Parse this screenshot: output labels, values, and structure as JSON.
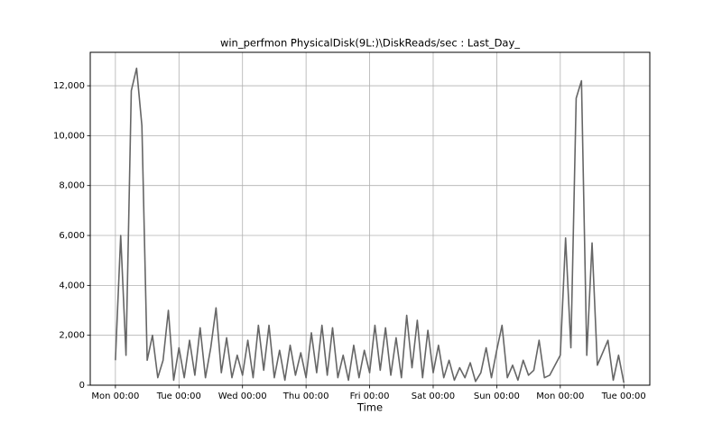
{
  "chart_data": {
    "type": "line",
    "title": "win_perfmon PhysicalDisk(9L:)\\DiskReads/sec : Last_Day_",
    "x_label": "Time",
    "grid": true,
    "xlim": [
      -9.5,
      201.8
    ],
    "ylim": [
      0,
      13340
    ],
    "xticks": [
      {
        "value": 0,
        "label": "Mon 00:00"
      },
      {
        "value": 24,
        "label": "Tue 00:00"
      },
      {
        "value": 48,
        "label": "Wed 00:00"
      },
      {
        "value": 72,
        "label": "Thu 00:00"
      },
      {
        "value": 96,
        "label": "Fri 00:00"
      },
      {
        "value": 120,
        "label": "Sat 00:00"
      },
      {
        "value": 144,
        "label": "Sun 00:00"
      },
      {
        "value": 168,
        "label": "Mon 00:00"
      },
      {
        "value": 192,
        "label": "Tue 00:00"
      }
    ],
    "yticks": [
      0,
      {
        "value": 2000,
        "label": "2,000"
      },
      {
        "value": 4000,
        "label": "4,000"
      },
      {
        "value": 6000,
        "label": "6,000"
      },
      {
        "value": 8000,
        "label": "8,000"
      },
      {
        "value": 10000,
        "label": "10,000"
      },
      {
        "value": 12000,
        "label": "12,000"
      }
    ],
    "x": [
      0,
      2,
      4,
      6,
      8,
      10,
      12,
      14,
      16,
      18,
      20,
      22,
      24,
      26,
      28,
      30,
      32,
      34,
      36,
      38,
      40,
      42,
      44,
      46,
      48,
      50,
      52,
      54,
      56,
      58,
      60,
      62,
      64,
      66,
      68,
      70,
      72,
      74,
      76,
      78,
      80,
      82,
      84,
      86,
      88,
      90,
      92,
      94,
      96,
      98,
      100,
      102,
      104,
      106,
      108,
      110,
      112,
      114,
      116,
      118,
      120,
      122,
      124,
      126,
      128,
      130,
      132,
      134,
      136,
      138,
      140,
      142,
      144,
      146,
      148,
      150,
      152,
      154,
      156,
      158,
      160,
      162,
      164,
      166,
      168,
      170,
      172,
      174,
      176,
      178,
      180,
      182,
      184,
      186,
      188,
      190,
      192
    ],
    "series": [
      {
        "color": "#666666",
        "values": [
          1000,
          6000,
          1200,
          11800,
          12700,
          10400,
          1000,
          2000,
          300,
          1000,
          3000,
          200,
          1500,
          300,
          1800,
          400,
          2300,
          300,
          1500,
          3100,
          500,
          1900,
          300,
          1200,
          400,
          1800,
          300,
          2400,
          600,
          2400,
          300,
          1400,
          200,
          1600,
          400,
          1300,
          300,
          2100,
          500,
          2400,
          400,
          2300,
          300,
          1200,
          200,
          1600,
          300,
          1400,
          500,
          2400,
          600,
          2300,
          400,
          1900,
          300,
          2800,
          700,
          2600,
          300,
          2200,
          500,
          1600,
          300,
          1000,
          200,
          700,
          300,
          900,
          150,
          500,
          1500,
          300,
          1400,
          2400,
          300,
          800,
          200,
          1000,
          400,
          600,
          1800,
          300,
          400,
          800,
          1200,
          5900,
          1500,
          11500,
          12200,
          1200,
          5700,
          800,
          1300,
          1800,
          200,
          1200,
          100
        ]
      }
    ]
  }
}
